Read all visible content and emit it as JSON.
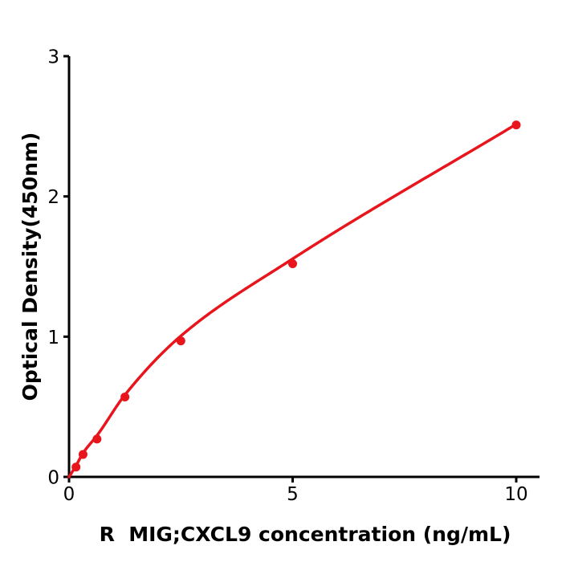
{
  "figure": {
    "background": "#ffffff",
    "axis_color": "#000000"
  },
  "chart_data": {
    "type": "scatter",
    "title": "",
    "xlabel": "R  MIG;CXCL9 concentration (ng/mL)",
    "ylabel": "Optical Density(450nm)",
    "xlim": [
      0,
      10.55
    ],
    "ylim": [
      0,
      3
    ],
    "x_ticks": [
      "0",
      "5",
      "10"
    ],
    "x_tick_values": [
      0,
      5,
      10
    ],
    "y_ticks": [
      "0",
      "1",
      "2",
      "3"
    ],
    "y_tick_values": [
      0,
      1,
      2,
      3
    ],
    "grid": false,
    "legend": "none",
    "series": [
      {
        "name": "standard-curve-points",
        "type": "scatter",
        "marker": "filled-circle",
        "color": "#e8151d",
        "x": [
          0.156,
          0.313,
          0.625,
          1.25,
          2.5,
          5,
          10
        ],
        "y": [
          0.07,
          0.16,
          0.27,
          0.57,
          0.97,
          1.52,
          2.51
        ]
      },
      {
        "name": "fitted-curve",
        "type": "line",
        "color": "#e8151d",
        "x": [
          0,
          0.156,
          0.313,
          0.625,
          1.25,
          2.5,
          5,
          10
        ],
        "y": [
          0,
          0.08,
          0.17,
          0.295,
          0.585,
          1.005,
          1.555,
          2.515
        ]
      }
    ]
  }
}
